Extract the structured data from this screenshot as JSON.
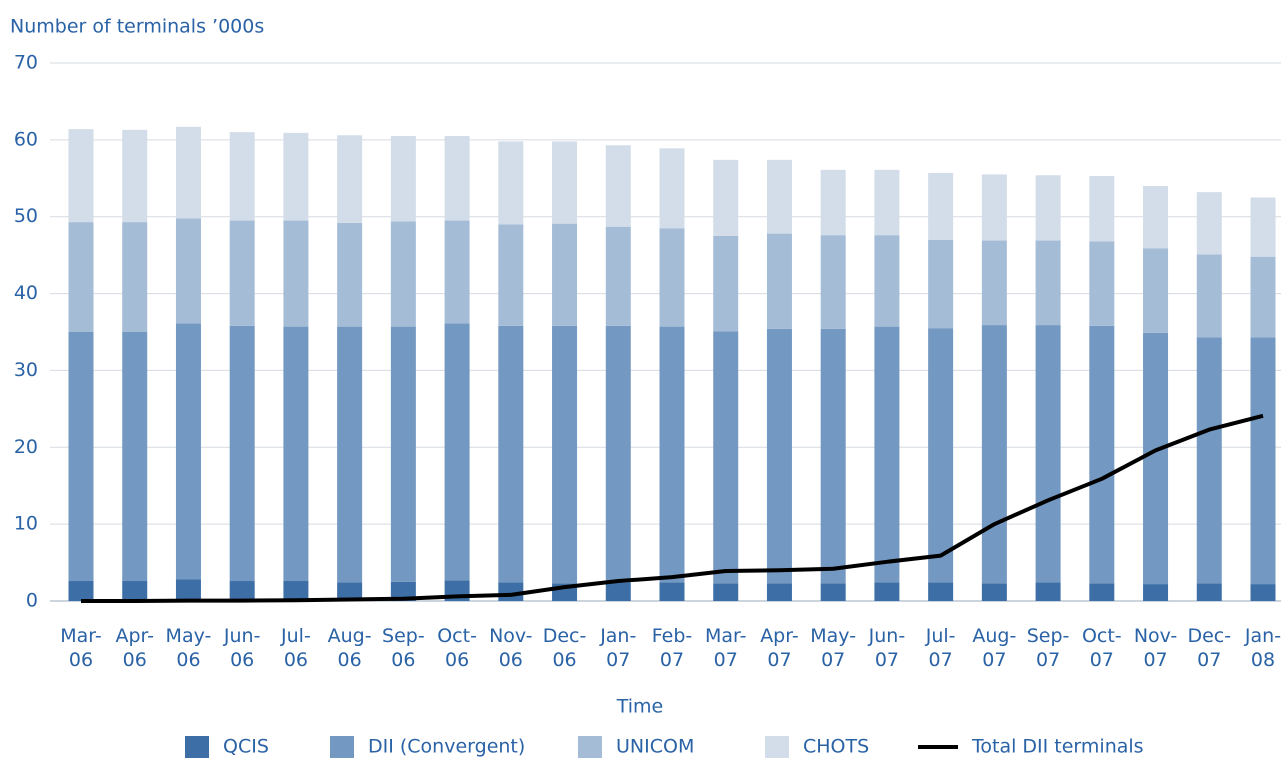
{
  "chart_data": {
    "type": "bar",
    "stacked": true,
    "title": "Number of terminals ’000s",
    "x_label": "Time",
    "categories": [
      "Mar-06",
      "Apr-06",
      "May-06",
      "Jun-06",
      "Jul-06",
      "Aug-06",
      "Sep-06",
      "Oct-06",
      "Nov-06",
      "Dec-06",
      "Jan-07",
      "Feb-07",
      "Mar-07",
      "Apr-07",
      "May-07",
      "Jun-07",
      "Jul-07",
      "Aug-07",
      "Sep-07",
      "Oct-07",
      "Nov-07",
      "Dec-07",
      "Jan-08"
    ],
    "series": [
      {
        "name": "QCIS",
        "type": "bar",
        "color": "#3d6fa6",
        "values": [
          2.6,
          2.6,
          2.8,
          2.6,
          2.6,
          2.4,
          2.5,
          2.7,
          2.4,
          2.3,
          2.4,
          2.4,
          2.3,
          2.3,
          2.3,
          2.4,
          2.4,
          2.3,
          2.4,
          2.3,
          2.2,
          2.3,
          2.2
        ]
      },
      {
        "name": "DII (Convergent)",
        "type": "bar",
        "color": "#7398c1",
        "values": [
          32.4,
          32.4,
          33.3,
          33.2,
          33.1,
          33.3,
          33.2,
          33.4,
          33.4,
          33.5,
          33.4,
          33.3,
          32.8,
          33.1,
          33.1,
          33.3,
          33.1,
          33.6,
          33.5,
          33.5,
          32.7,
          32.0,
          32.1
        ]
      },
      {
        "name": "UNICOM",
        "type": "bar",
        "color": "#a5bcd7",
        "values": [
          14.3,
          14.3,
          13.7,
          13.7,
          13.8,
          13.5,
          13.7,
          13.4,
          13.2,
          13.3,
          12.9,
          12.8,
          12.4,
          12.4,
          12.2,
          11.9,
          11.5,
          11.0,
          11.0,
          11.0,
          11.0,
          10.8,
          10.5
        ]
      },
      {
        "name": "CHOTS",
        "type": "bar",
        "color": "#d3dde9",
        "values": [
          12.1,
          12.0,
          11.9,
          11.5,
          11.4,
          11.4,
          11.1,
          11.0,
          10.8,
          10.7,
          10.6,
          10.4,
          9.9,
          9.6,
          8.5,
          8.5,
          8.7,
          8.6,
          8.5,
          8.5,
          8.1,
          8.1,
          7.7
        ]
      },
      {
        "name": "Total DII terminals",
        "type": "line",
        "color": "#000000",
        "values": [
          0,
          0,
          0.05,
          0.05,
          0.1,
          0.2,
          0.3,
          0.6,
          0.8,
          1.8,
          2.6,
          3.1,
          3.9,
          4.0,
          4.2,
          5.1,
          5.9,
          10.0,
          13.1,
          15.9,
          19.6,
          22.3,
          24.1
        ]
      }
    ],
    "ylim": [
      0,
      70
    ],
    "yticks": [
      0,
      10,
      20,
      30,
      40,
      50,
      60,
      70
    ],
    "grid": true
  }
}
